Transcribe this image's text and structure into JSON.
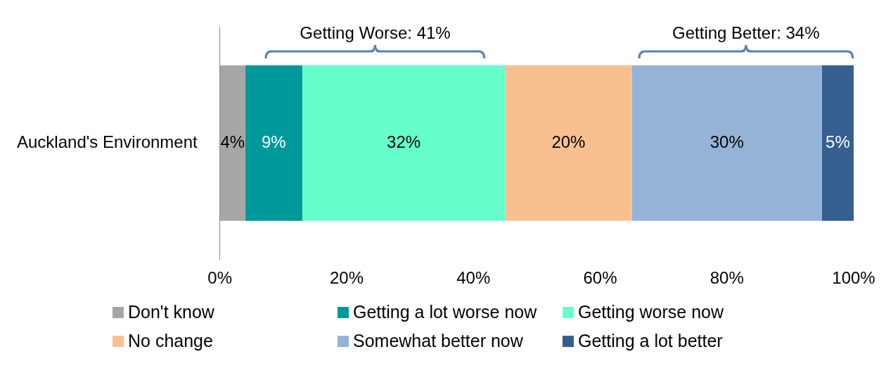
{
  "chart_data": {
    "type": "bar",
    "orientation": "horizontal",
    "stacked": true,
    "categories": [
      "Auckland's Environment"
    ],
    "series": [
      {
        "name": "Don't know",
        "color": "#a6a6a6",
        "values": [
          4
        ],
        "value_labels": [
          "4%"
        ]
      },
      {
        "name": "Getting a lot worse now",
        "color": "#009999",
        "values": [
          9
        ],
        "value_labels": [
          "9%"
        ]
      },
      {
        "name": "Getting worse now",
        "color": "#66ffcc",
        "values": [
          32
        ],
        "value_labels": [
          "32%"
        ]
      },
      {
        "name": "No change",
        "color": "#f9c08f",
        "values": [
          20
        ],
        "value_labels": [
          "20%"
        ]
      },
      {
        "name": "Somewhat better now",
        "color": "#95b3d7",
        "values": [
          30
        ],
        "value_labels": [
          "30%"
        ]
      },
      {
        "name": "Getting a lot better",
        "color": "#355f91",
        "values": [
          5
        ],
        "value_labels": [
          "5%"
        ]
      }
    ],
    "xlim": [
      0,
      100
    ],
    "xticks": [
      {
        "value": 0,
        "label": "0%"
      },
      {
        "value": 20,
        "label": "20%"
      },
      {
        "value": 40,
        "label": "40%"
      },
      {
        "value": 60,
        "label": "60%"
      },
      {
        "value": 80,
        "label": "80%"
      },
      {
        "value": 100,
        "label": "100%"
      }
    ],
    "annotations": [
      "Getting Worse: 41%",
      "Getting Better: 34%"
    ],
    "grid": false,
    "legend": "bottom"
  }
}
